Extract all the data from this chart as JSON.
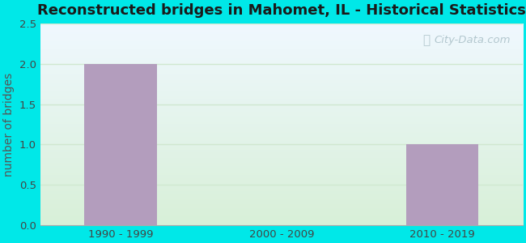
{
  "title": "Reconstructed bridges in Mahomet, IL - Historical Statistics",
  "categories": [
    "1990 - 1999",
    "2000 - 2009",
    "2010 - 2019"
  ],
  "values": [
    2,
    0,
    1
  ],
  "bar_color": "#b39dbd",
  "bar_width": 0.45,
  "ylabel": "number of bridges",
  "ylim": [
    0,
    2.5
  ],
  "yticks": [
    0,
    0.5,
    1,
    1.5,
    2,
    2.5
  ],
  "background_outer": "#00e8e8",
  "grid_color": "#d0e8d0",
  "title_fontsize": 13,
  "ylabel_fontsize": 10,
  "tick_fontsize": 9.5,
  "title_color": "#1a1a1a",
  "ylabel_color": "#555555",
  "tick_label_color": "#444444",
  "watermark": "City-Data.com",
  "watermark_color": "#a0b8c0",
  "bg_top_color": "#f0f8ff",
  "bg_bottom_color": "#d8f0d8"
}
